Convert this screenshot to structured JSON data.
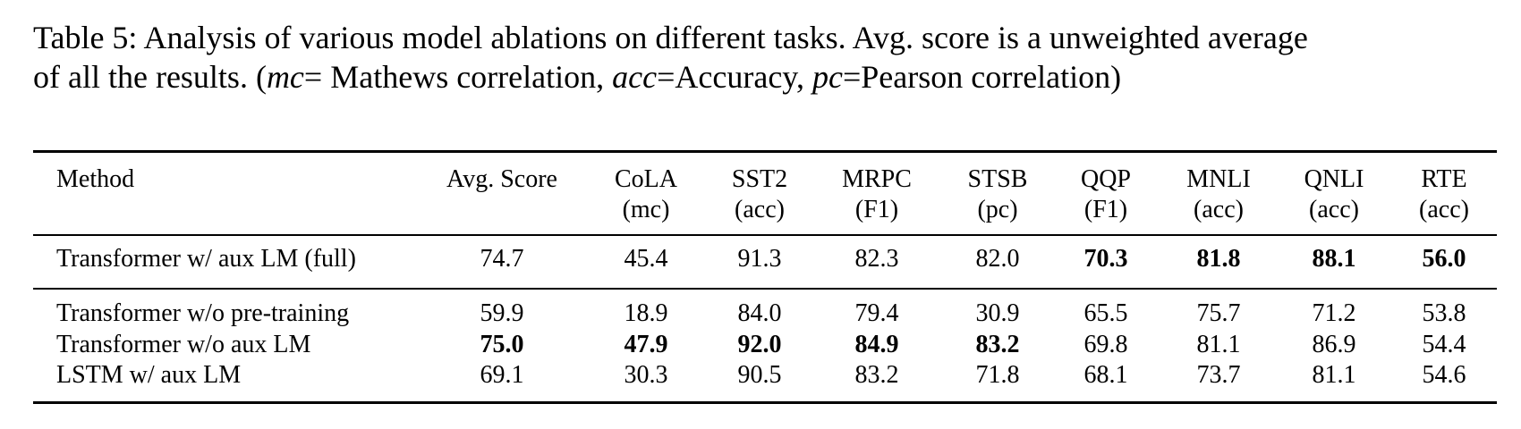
{
  "caption": {
    "part1": "Table 5: Analysis of various model ablations on different tasks. Avg. score is a unweighted average",
    "part2_prefix": "of all the results. (",
    "mc_abbr": "mc",
    "mc_def": "= Mathews correlation, ",
    "acc_abbr": "acc",
    "acc_def": "=Accuracy, ",
    "pc_abbr": "pc",
    "pc_def": "=Pearson correlation)"
  },
  "table": {
    "headers": [
      {
        "line1": "Method",
        "line2": ""
      },
      {
        "line1": "Avg. Score",
        "line2": ""
      },
      {
        "line1": "CoLA",
        "line2": "(mc)"
      },
      {
        "line1": "SST2",
        "line2": "(acc)"
      },
      {
        "line1": "MRPC",
        "line2": "(F1)"
      },
      {
        "line1": "STSB",
        "line2": "(pc)"
      },
      {
        "line1": "QQP",
        "line2": "(F1)"
      },
      {
        "line1": "MNLI",
        "line2": "(acc)"
      },
      {
        "line1": "QNLI",
        "line2": "(acc)"
      },
      {
        "line1": "RTE",
        "line2": "(acc)"
      }
    ],
    "rows": [
      {
        "method": "Transformer w/ aux LM (full)",
        "values": [
          "74.7",
          "45.4",
          "91.3",
          "82.3",
          "82.0",
          "70.3",
          "81.8",
          "88.1",
          "56.0"
        ],
        "bold": [
          false,
          false,
          false,
          false,
          false,
          true,
          true,
          true,
          true
        ]
      },
      {
        "method": "Transformer w/o pre-training",
        "values": [
          "59.9",
          "18.9",
          "84.0",
          "79.4",
          "30.9",
          "65.5",
          "75.7",
          "71.2",
          "53.8"
        ],
        "bold": [
          false,
          false,
          false,
          false,
          false,
          false,
          false,
          false,
          false
        ]
      },
      {
        "method": "Transformer w/o aux LM",
        "values": [
          "75.0",
          "47.9",
          "92.0",
          "84.9",
          "83.2",
          "69.8",
          "81.1",
          "86.9",
          "54.4"
        ],
        "bold": [
          true,
          true,
          true,
          true,
          true,
          false,
          false,
          false,
          false
        ]
      },
      {
        "method": "LSTM w/ aux LM",
        "values": [
          "69.1",
          "30.3",
          "90.5",
          "83.2",
          "71.8",
          "68.1",
          "73.7",
          "81.1",
          "54.6"
        ],
        "bold": [
          false,
          false,
          false,
          false,
          false,
          false,
          false,
          false,
          false
        ]
      }
    ]
  }
}
